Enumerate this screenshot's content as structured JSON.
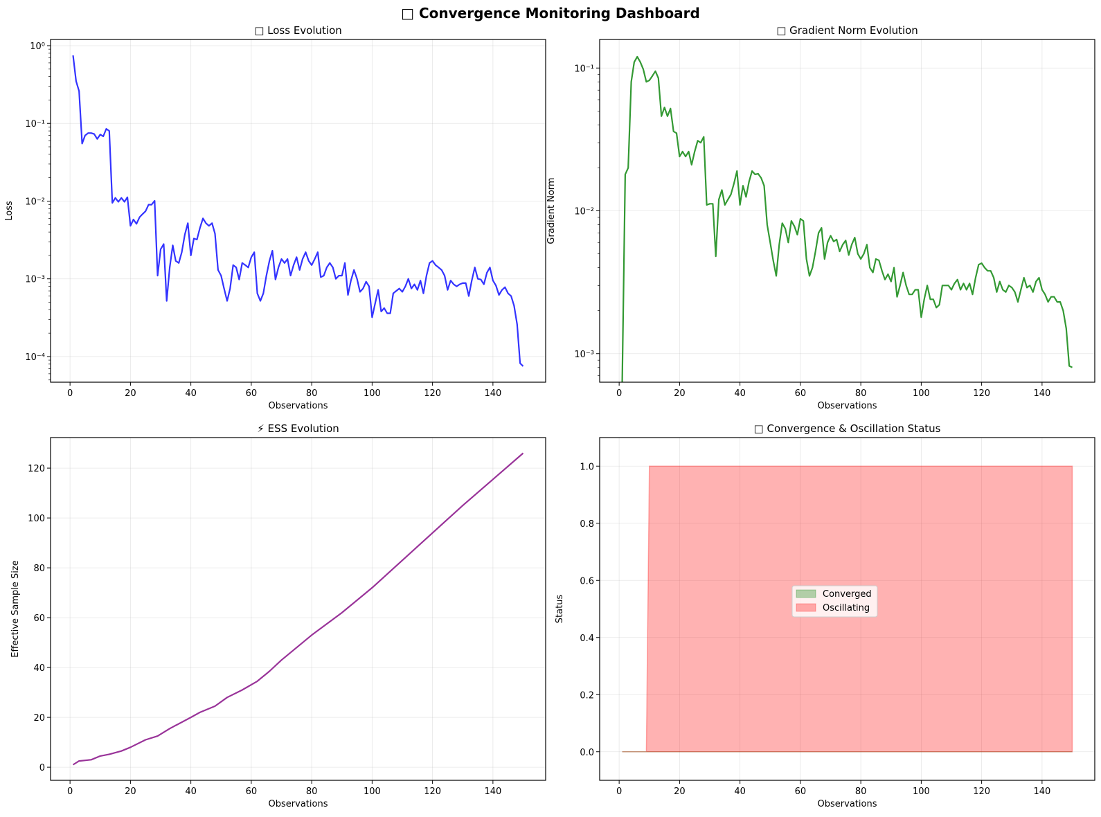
{
  "figure": {
    "title": "□ Convergence Monitoring Dashboard"
  },
  "chart_data": [
    {
      "type": "line",
      "title": "□ Loss Evolution",
      "xlabel": "Observations",
      "ylabel": "Loss",
      "yscale": "log",
      "xlim": [
        -6.45,
        157.45
      ],
      "ylim_log10": [
        -4.33,
        0.08
      ],
      "xticks": [
        0,
        20,
        40,
        60,
        80,
        100,
        120,
        140
      ],
      "xtick_labels": [
        "0",
        "20",
        "40",
        "60",
        "80",
        "100",
        "120",
        "140"
      ],
      "yticks": [
        1,
        0.1,
        0.01,
        0.001,
        0.0001
      ],
      "ytick_labels": [
        "10⁰",
        "10⁻¹",
        "10⁻²",
        "10⁻³",
        "10⁻⁴"
      ],
      "grid": true,
      "color": "#3333ff",
      "series": [
        {
          "x_range": [
            1,
            150
          ],
          "values": [
            0.75,
            0.35,
            0.26,
            0.055,
            0.07,
            0.075,
            0.075,
            0.073,
            0.063,
            0.072,
            0.068,
            0.085,
            0.08,
            0.0095,
            0.011,
            0.0098,
            0.011,
            0.0098,
            0.0112,
            0.0048,
            0.0058,
            0.0051,
            0.0062,
            0.0068,
            0.0074,
            0.009,
            0.009,
            0.0101,
            0.0011,
            0.0024,
            0.0028,
            0.00052,
            0.0014,
            0.0027,
            0.0017,
            0.0016,
            0.0022,
            0.0037,
            0.0052,
            0.002,
            0.0033,
            0.0032,
            0.0045,
            0.006,
            0.0052,
            0.0048,
            0.0052,
            0.0038,
            0.0013,
            0.0011,
            0.00075,
            0.00052,
            0.00075,
            0.0015,
            0.0014,
            0.00098,
            0.0016,
            0.0015,
            0.0014,
            0.0019,
            0.0022,
            0.00065,
            0.00052,
            0.00065,
            0.0011,
            0.0017,
            0.0023,
            0.00098,
            0.0014,
            0.0018,
            0.0016,
            0.0018,
            0.0011,
            0.0015,
            0.0019,
            0.0013,
            0.0018,
            0.0022,
            0.0017,
            0.0015,
            0.0018,
            0.0022,
            0.00105,
            0.0011,
            0.0014,
            0.0016,
            0.0014,
            0.001,
            0.0011,
            0.0011,
            0.0016,
            0.00062,
            0.00095,
            0.0013,
            0.001,
            0.00068,
            0.00075,
            0.00092,
            0.0008,
            0.00032,
            0.00048,
            0.00072,
            0.00038,
            0.00042,
            0.00036,
            0.00036,
            0.00065,
            0.0007,
            0.00075,
            0.00068,
            0.0008,
            0.001,
            0.00075,
            0.00085,
            0.00072,
            0.00095,
            0.00065,
            0.0011,
            0.0016,
            0.0017,
            0.0015,
            0.0014,
            0.0013,
            0.0011,
            0.00072,
            0.00095,
            0.00085,
            0.0008,
            0.00085,
            0.00088,
            0.00088,
            0.0006,
            0.00095,
            0.0014,
            0.001,
            0.00098,
            0.00085,
            0.0012,
            0.0014,
            0.00095,
            0.00082,
            0.00062,
            0.00072,
            0.00078,
            0.00065,
            0.0006,
            0.00045,
            0.00026,
            8.2e-05,
            7.5e-05
          ]
        }
      ]
    },
    {
      "type": "line",
      "title": "□ Gradient Norm Evolution",
      "xlabel": "Observations",
      "ylabel": "Gradient Norm",
      "yscale": "log",
      "xlim": [
        -6.45,
        157.45
      ],
      "ylim_log10": [
        -3.2,
        -0.8
      ],
      "xticks": [
        0,
        20,
        40,
        60,
        80,
        100,
        120,
        140
      ],
      "xtick_labels": [
        "0",
        "20",
        "40",
        "60",
        "80",
        "100",
        "120",
        "140"
      ],
      "yticks": [
        0.1,
        0.01,
        0.001
      ],
      "ytick_labels": [
        "10⁻¹",
        "10⁻²",
        "10⁻³"
      ],
      "grid": true,
      "color": "#339933",
      "series": [
        {
          "x_range": [
            1,
            150
          ],
          "values": [
            0,
            0.018,
            0.02,
            0.08,
            0.11,
            0.12,
            0.11,
            0.098,
            0.08,
            0.082,
            0.088,
            0.095,
            0.085,
            0.046,
            0.053,
            0.046,
            0.052,
            0.036,
            0.035,
            0.024,
            0.026,
            0.024,
            0.026,
            0.021,
            0.026,
            0.031,
            0.03,
            0.033,
            0.011,
            0.0112,
            0.0112,
            0.0048,
            0.012,
            0.014,
            0.011,
            0.012,
            0.013,
            0.0155,
            0.019,
            0.011,
            0.015,
            0.0125,
            0.016,
            0.019,
            0.018,
            0.0182,
            0.017,
            0.015,
            0.008,
            0.006,
            0.0045,
            0.0035,
            0.0058,
            0.0082,
            0.0075,
            0.006,
            0.0085,
            0.0078,
            0.0068,
            0.0088,
            0.0085,
            0.0046,
            0.0035,
            0.004,
            0.0052,
            0.007,
            0.0076,
            0.0046,
            0.006,
            0.0067,
            0.0061,
            0.0063,
            0.0052,
            0.0058,
            0.0062,
            0.0049,
            0.0058,
            0.0065,
            0.005,
            0.0046,
            0.005,
            0.0058,
            0.004,
            0.0037,
            0.0046,
            0.0045,
            0.0038,
            0.0033,
            0.0036,
            0.0032,
            0.004,
            0.0025,
            0.003,
            0.0037,
            0.003,
            0.0026,
            0.0026,
            0.0028,
            0.0028,
            0.0018,
            0.0024,
            0.003,
            0.0024,
            0.0024,
            0.0021,
            0.0022,
            0.003,
            0.003,
            0.003,
            0.0028,
            0.0031,
            0.0033,
            0.0028,
            0.0031,
            0.0028,
            0.0031,
            0.0026,
            0.0034,
            0.0042,
            0.0043,
            0.004,
            0.0038,
            0.0038,
            0.0034,
            0.0027,
            0.0032,
            0.0028,
            0.0027,
            0.003,
            0.0029,
            0.0027,
            0.0023,
            0.0028,
            0.0034,
            0.0029,
            0.003,
            0.0027,
            0.0032,
            0.0034,
            0.0028,
            0.0026,
            0.0023,
            0.0025,
            0.0025,
            0.0023,
            0.0023,
            0.002,
            0.0015,
            0.00082,
            0.0008
          ]
        }
      ]
    },
    {
      "type": "line",
      "title": "⚡ ESS Evolution",
      "xlabel": "Observations",
      "ylabel": "Effective Sample Size",
      "yscale": "linear",
      "xlim": [
        -6.45,
        157.45
      ],
      "ylim": [
        -5.25,
        132.25
      ],
      "xticks": [
        0,
        20,
        40,
        60,
        80,
        100,
        120,
        140
      ],
      "xtick_labels": [
        "0",
        "20",
        "40",
        "60",
        "80",
        "100",
        "120",
        "140"
      ],
      "yticks": [
        0,
        20,
        40,
        60,
        80,
        100,
        120
      ],
      "ytick_labels": [
        "0",
        "20",
        "40",
        "60",
        "80",
        "100",
        "120"
      ],
      "grid": true,
      "color": "#993399",
      "series": [
        {
          "x": [
            1,
            3,
            7,
            10,
            13,
            17,
            20,
            25,
            29,
            33,
            40,
            43,
            48,
            52,
            57,
            62,
            66,
            70,
            75,
            80,
            90,
            100,
            110,
            120,
            130,
            140,
            150
          ],
          "values": [
            1,
            2.5,
            3,
            4.5,
            5.2,
            6.5,
            8,
            11,
            12.5,
            15.5,
            20,
            22,
            24.5,
            28,
            31,
            34.5,
            38.5,
            43,
            48,
            53,
            62,
            72,
            83,
            94,
            105,
            115.5,
            126
          ]
        }
      ]
    },
    {
      "type": "area",
      "title": "□ Convergence & Oscillation Status",
      "xlabel": "Observations",
      "ylabel": "Status",
      "yscale": "linear",
      "xlim": [
        -6.45,
        157.45
      ],
      "ylim": [
        -0.1,
        1.1
      ],
      "xticks": [
        0,
        20,
        40,
        60,
        80,
        100,
        120,
        140
      ],
      "xtick_labels": [
        "0",
        "20",
        "40",
        "60",
        "80",
        "100",
        "120",
        "140"
      ],
      "yticks": [
        0,
        0.2,
        0.4,
        0.6,
        0.8,
        1.0
      ],
      "ytick_labels": [
        "0.0",
        "0.2",
        "0.4",
        "0.6",
        "0.8",
        "1.0"
      ],
      "grid": true,
      "legend_position": "center",
      "series": [
        {
          "name": "Converged",
          "color": "#008000",
          "x": [
            1,
            150
          ],
          "values": [
            0,
            0
          ]
        },
        {
          "name": "Oscillating",
          "color": "#ff0000",
          "x": [
            1,
            9,
            10,
            150
          ],
          "values": [
            0,
            0,
            1,
            1
          ]
        }
      ]
    }
  ]
}
